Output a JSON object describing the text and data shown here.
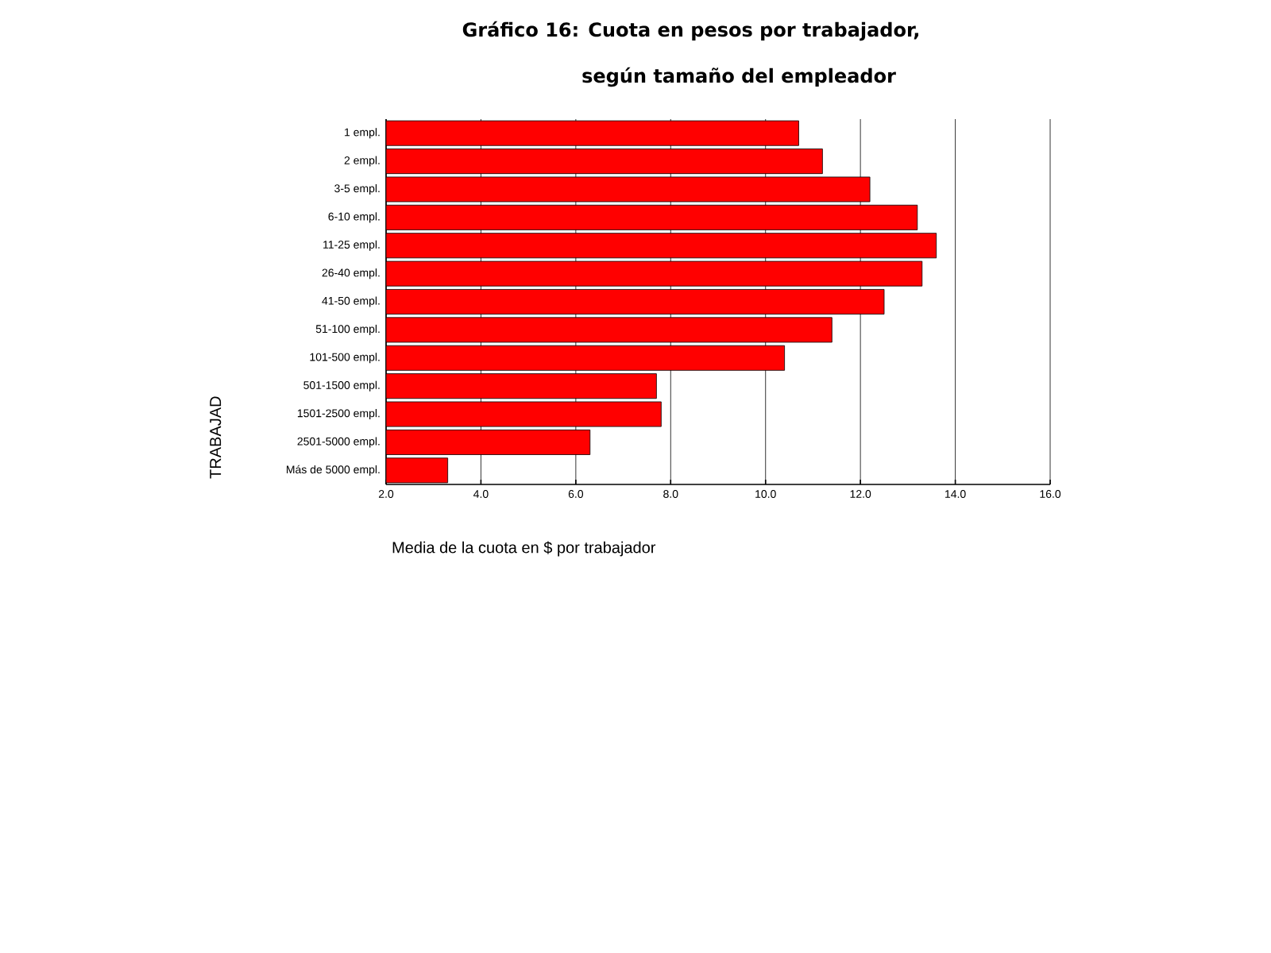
{
  "chart_data": {
    "type": "bar",
    "orientation": "horizontal",
    "title": "Gráfico 16: Cuota en pesos por trabajador,",
    "subtitle": "según tamaño del empleador",
    "xlabel": "Media de la cuota en $ por trabajador",
    "ylabel": "TRABAJAD",
    "categories": [
      "1 empl.",
      "2 empl.",
      "3-5 empl.",
      "6-10 empl.",
      "11-25 empl.",
      "26-40 empl.",
      "41-50 empl.",
      "51-100 empl.",
      "101-500 empl.",
      "501-1500 empl.",
      "1501-2500 empl.",
      "2501-5000 empl.",
      "Más de 5000 empl."
    ],
    "values": [
      10.7,
      11.2,
      12.2,
      13.2,
      13.6,
      13.3,
      12.5,
      11.4,
      10.4,
      7.7,
      7.8,
      6.3,
      3.3
    ],
    "color": "#ff0000",
    "xlim": [
      2,
      16
    ],
    "xticks": [
      {
        "value": 2,
        "label": "2.0"
      },
      {
        "value": 4,
        "label": "4.0"
      },
      {
        "value": 6,
        "label": "6.0"
      },
      {
        "value": 8,
        "label": "8.0"
      },
      {
        "value": 10,
        "label": "10.0"
      },
      {
        "value": 12,
        "label": "12.0"
      },
      {
        "value": 14,
        "label": "14.0"
      },
      {
        "value": 16,
        "label": "16.0"
      }
    ],
    "grid": "x"
  }
}
